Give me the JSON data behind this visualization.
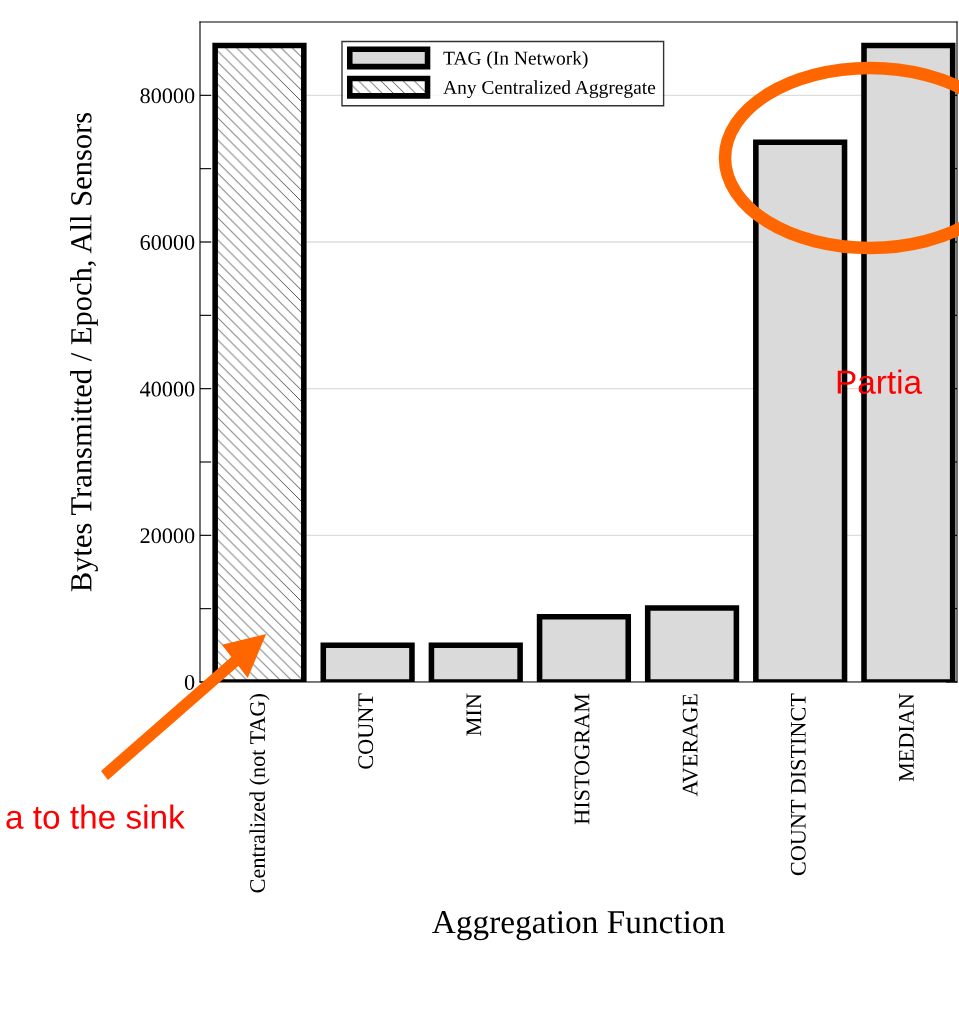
{
  "chart_data": {
    "type": "bar",
    "xlabel": "Aggregation Function",
    "ylabel": "Bytes Transmitted / Epoch, All Sensors",
    "categories": [
      "Centralized (not TAG)",
      "COUNT",
      "MIN",
      "HISTOGRAM",
      "AVERAGE",
      "COUNT DISTINCT",
      "MEDIAN"
    ],
    "series": [
      {
        "name": "TAG (In Network)",
        "color": "#dadada",
        "values": [
          null,
          5000,
          5000,
          8900,
          10100,
          73600,
          86800
        ]
      },
      {
        "name": "Any Centralized Aggregate",
        "color": "#000000",
        "values": [
          86800,
          null,
          null,
          null,
          null,
          null,
          null
        ]
      }
    ],
    "ylim": [
      0,
      90000
    ],
    "yticks": [
      0,
      {
        "value": 10000,
        "label": null
      },
      20000,
      {
        "value": 30000,
        "label": null
      },
      40000,
      {
        "value": 50000,
        "label": null
      },
      60000,
      {
        "value": 70000,
        "label": null
      },
      80000
    ],
    "grid": "y",
    "legend": "top",
    "annotations": [
      "a to the sink",
      "Partia"
    ]
  }
}
